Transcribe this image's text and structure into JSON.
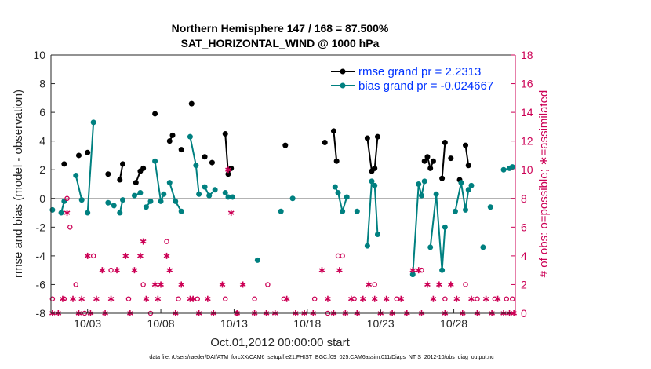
{
  "chart_data": {
    "type": "line",
    "title": "Northern Hemisphere 147 / 168 = 87.500%",
    "subtitle": "SAT_HORIZONTAL_WIND @ 1000 hPa",
    "xlabel": "Oct.01,2012 00:00:00 start",
    "ylabel": "rmse and bias (model - observation)",
    "ylabel_right": "# of obs: o=possible; ∗=assimilated",
    "footnote": "data file: /Users/raeder/DAI/ATM_forcXX/CAM6_setup/f.e21.FHIST_BGC.f09_025.CAM6assim.011/Diags_NTrS_2012-10/obs_diag_output.nc",
    "xlim": [
      0.5,
      32.2
    ],
    "ylim": [
      -8,
      10
    ],
    "ylim_right": [
      0,
      18
    ],
    "x_ticks": [
      3,
      8,
      13,
      18,
      23,
      28
    ],
    "x_tick_labels": [
      "10/03",
      "10/08",
      "10/13",
      "10/18",
      "10/23",
      "10/28"
    ],
    "y_ticks": [
      -8,
      -6,
      -4,
      -2,
      0,
      2,
      4,
      6,
      8,
      10
    ],
    "y_tick_labels": [
      "-8",
      "-6",
      "-4",
      "-2",
      "0",
      "2",
      "4",
      "6",
      "8",
      "10"
    ],
    "y_right_ticks": [
      0,
      2,
      4,
      6,
      8,
      10,
      12,
      14,
      16,
      18
    ],
    "y_right_tick_labels": [
      "0",
      "2",
      "4",
      "6",
      "8",
      "10",
      "12",
      "14",
      "16",
      "18"
    ],
    "legend": [
      {
        "label": "rmse grand pr = 2.2313",
        "color": "#000000"
      },
      {
        "label": "bias grand pr = -0.024667",
        "color": "#008080"
      }
    ],
    "legend_position": "top-right",
    "colors": {
      "rmse": "#000000",
      "bias": "#008080",
      "obs": "#cc0055",
      "zero_line": "#b3b3b3"
    },
    "series": [
      {
        "name": "rmse",
        "segments": [
          [
            [
              1.4,
              2.4
            ]
          ],
          [
            [
              2.4,
              3.0
            ]
          ],
          [
            [
              3.0,
              3.2
            ]
          ],
          [
            [
              4.4,
              1.7
            ]
          ],
          [
            [
              5.2,
              1.3
            ],
            [
              5.4,
              2.4
            ]
          ],
          [
            [
              6.3,
              1.1
            ],
            [
              6.6,
              1.9
            ],
            [
              6.8,
              2.1
            ]
          ],
          [
            [
              7.6,
              5.9
            ]
          ],
          [
            [
              8.6,
              4.0
            ],
            [
              8.8,
              4.4
            ]
          ],
          [
            [
              9.4,
              3.4
            ]
          ],
          [
            [
              10.1,
              6.6
            ]
          ],
          [
            [
              11.0,
              2.9
            ]
          ],
          [
            [
              11.5,
              2.5
            ]
          ],
          [
            [
              12.4,
              4.5
            ],
            [
              12.6,
              1.7
            ],
            [
              12.8,
              2.1
            ]
          ],
          [
            [
              16.5,
              3.7
            ]
          ],
          [
            [
              19.2,
              3.9
            ]
          ],
          [
            [
              19.8,
              4.7
            ],
            [
              20.0,
              2.6
            ]
          ],
          [
            [
              22.1,
              4.2
            ],
            [
              22.4,
              1.9
            ],
            [
              22.6,
              2.1
            ],
            [
              22.8,
              4.3
            ]
          ],
          [
            [
              26.0,
              2.6
            ],
            [
              26.2,
              2.9
            ],
            [
              26.4,
              2.1
            ],
            [
              26.6,
              2.6
            ]
          ],
          [
            [
              27.2,
              1.4
            ],
            [
              27.4,
              3.9
            ]
          ],
          [
            [
              27.8,
              2.8
            ]
          ],
          [
            [
              28.4,
              1.3
            ]
          ],
          [
            [
              28.8,
              3.7
            ],
            [
              29.0,
              2.3
            ]
          ]
        ]
      },
      {
        "name": "bias",
        "segments": [
          [
            [
              0.6,
              -0.8
            ]
          ],
          [
            [
              1.2,
              -1.0
            ],
            [
              1.4,
              -0.2
            ]
          ],
          [
            [
              2.2,
              1.6
            ],
            [
              2.6,
              -0.1
            ]
          ],
          [
            [
              3.0,
              -1.0
            ],
            [
              3.4,
              5.3
            ]
          ],
          [
            [
              4.4,
              -0.3
            ],
            [
              4.8,
              -0.5
            ]
          ],
          [
            [
              5.2,
              -1.0
            ],
            [
              5.4,
              -0.1
            ]
          ],
          [
            [
              6.2,
              0.2
            ],
            [
              6.6,
              0.4
            ]
          ],
          [
            [
              7.0,
              -0.6
            ],
            [
              7.3,
              -0.2
            ]
          ],
          [
            [
              7.6,
              2.6
            ],
            [
              8.0,
              -0.2
            ],
            [
              8.2,
              0.3
            ]
          ],
          [
            [
              8.6,
              1.1
            ],
            [
              9.0,
              -0.2
            ],
            [
              9.4,
              -0.9
            ]
          ],
          [
            [
              10.0,
              4.3
            ],
            [
              10.4,
              2.3
            ],
            [
              10.6,
              0.3
            ]
          ],
          [
            [
              11.0,
              0.8
            ],
            [
              11.3,
              0.2
            ],
            [
              11.7,
              0.6
            ]
          ],
          [
            [
              12.4,
              0.4
            ],
            [
              12.6,
              0.1
            ],
            [
              12.9,
              0.1
            ]
          ],
          [
            [
              14.6,
              -4.3
            ]
          ],
          [
            [
              16.2,
              -0.9
            ]
          ],
          [
            [
              17.0,
              0.0
            ]
          ],
          [
            [
              19.9,
              0.8
            ],
            [
              20.1,
              0.4
            ],
            [
              20.4,
              -0.9
            ],
            [
              20.7,
              0.1
            ]
          ],
          [
            [
              21.4,
              -0.9
            ]
          ],
          [
            [
              22.1,
              -3.3
            ],
            [
              22.4,
              1.2
            ],
            [
              22.6,
              0.9
            ],
            [
              22.8,
              -2.5
            ]
          ],
          [
            [
              25.2,
              -5.3
            ],
            [
              25.6,
              1.0
            ],
            [
              25.8,
              0.2
            ],
            [
              26.0,
              1.2
            ]
          ],
          [
            [
              26.4,
              -3.4
            ],
            [
              26.8,
              0.3
            ],
            [
              27.2,
              -5.0
            ],
            [
              27.4,
              -2.0
            ]
          ],
          [
            [
              28.1,
              -0.9
            ],
            [
              28.5,
              1.1
            ],
            [
              28.8,
              -0.8
            ],
            [
              29.0,
              0.6
            ],
            [
              29.2,
              0.9
            ]
          ],
          [
            [
              30.0,
              -3.4
            ]
          ],
          [
            [
              30.5,
              -0.6
            ]
          ],
          [
            [
              31.4,
              2.0
            ],
            [
              31.8,
              2.1
            ],
            [
              32.0,
              2.2
            ]
          ]
        ]
      }
    ],
    "obs_possible": [
      [
        0.6,
        1
      ],
      [
        1.4,
        1
      ],
      [
        1.6,
        8
      ],
      [
        1.8,
        6
      ],
      [
        2.2,
        2
      ],
      [
        2.8,
        0
      ],
      [
        3.4,
        4
      ],
      [
        4.6,
        3
      ],
      [
        5.8,
        1
      ],
      [
        6.8,
        2
      ],
      [
        7.3,
        0
      ],
      [
        8.4,
        5
      ],
      [
        9.2,
        1
      ],
      [
        10.5,
        1
      ],
      [
        12.4,
        1
      ],
      [
        13.2,
        0
      ],
      [
        14.4,
        1
      ],
      [
        15.3,
        2
      ],
      [
        16.4,
        1
      ],
      [
        18.5,
        1
      ],
      [
        19.4,
        0
      ],
      [
        20.1,
        4
      ],
      [
        20.4,
        4
      ],
      [
        21.2,
        1
      ],
      [
        22.6,
        2
      ],
      [
        24.1,
        1
      ],
      [
        25.8,
        3
      ],
      [
        27.4,
        1
      ],
      [
        28.8,
        2
      ],
      [
        29.6,
        1
      ],
      [
        30.8,
        1
      ],
      [
        31.6,
        1
      ],
      [
        32.0,
        1
      ]
    ],
    "obs_assimilated": [
      [
        0.6,
        0
      ],
      [
        1.0,
        0
      ],
      [
        1.3,
        1
      ],
      [
        1.6,
        7
      ],
      [
        2.0,
        1
      ],
      [
        2.4,
        0
      ],
      [
        2.6,
        1
      ],
      [
        3.0,
        4
      ],
      [
        3.2,
        0
      ],
      [
        3.6,
        1
      ],
      [
        4.0,
        3
      ],
      [
        4.2,
        0
      ],
      [
        4.6,
        1
      ],
      [
        5.0,
        3
      ],
      [
        5.6,
        4
      ],
      [
        5.9,
        0
      ],
      [
        6.2,
        3
      ],
      [
        6.6,
        4
      ],
      [
        6.8,
        5
      ],
      [
        7.0,
        1
      ],
      [
        7.6,
        2
      ],
      [
        7.8,
        1
      ],
      [
        8.0,
        2
      ],
      [
        8.4,
        4
      ],
      [
        8.6,
        3
      ],
      [
        9.0,
        0
      ],
      [
        9.4,
        2
      ],
      [
        10.0,
        1
      ],
      [
        10.2,
        1
      ],
      [
        10.6,
        0
      ],
      [
        11.2,
        1
      ],
      [
        11.6,
        0
      ],
      [
        12.2,
        2
      ],
      [
        12.6,
        10
      ],
      [
        12.8,
        7
      ],
      [
        13.2,
        0
      ],
      [
        13.6,
        2
      ],
      [
        14.4,
        0
      ],
      [
        15.2,
        0
      ],
      [
        15.8,
        0
      ],
      [
        16.6,
        1
      ],
      [
        17.2,
        0
      ],
      [
        17.8,
        0
      ],
      [
        18.4,
        0
      ],
      [
        19.0,
        3
      ],
      [
        19.4,
        1
      ],
      [
        19.8,
        0
      ],
      [
        20.2,
        3
      ],
      [
        20.6,
        0
      ],
      [
        21.0,
        1
      ],
      [
        21.4,
        0
      ],
      [
        21.8,
        1
      ],
      [
        22.2,
        2
      ],
      [
        22.6,
        1
      ],
      [
        23.0,
        0
      ],
      [
        23.4,
        1
      ],
      [
        23.8,
        0
      ],
      [
        24.4,
        1
      ],
      [
        24.8,
        0
      ],
      [
        25.2,
        3
      ],
      [
        25.6,
        3
      ],
      [
        25.8,
        0
      ],
      [
        26.2,
        2
      ],
      [
        26.6,
        1
      ],
      [
        27.0,
        2
      ],
      [
        27.4,
        0
      ],
      [
        27.8,
        2
      ],
      [
        28.2,
        1
      ],
      [
        28.6,
        0
      ],
      [
        29.2,
        1
      ],
      [
        29.6,
        0
      ],
      [
        30.2,
        1
      ],
      [
        30.6,
        0
      ],
      [
        31.0,
        1
      ],
      [
        31.4,
        0
      ],
      [
        31.8,
        0
      ],
      [
        32.1,
        0
      ]
    ]
  }
}
